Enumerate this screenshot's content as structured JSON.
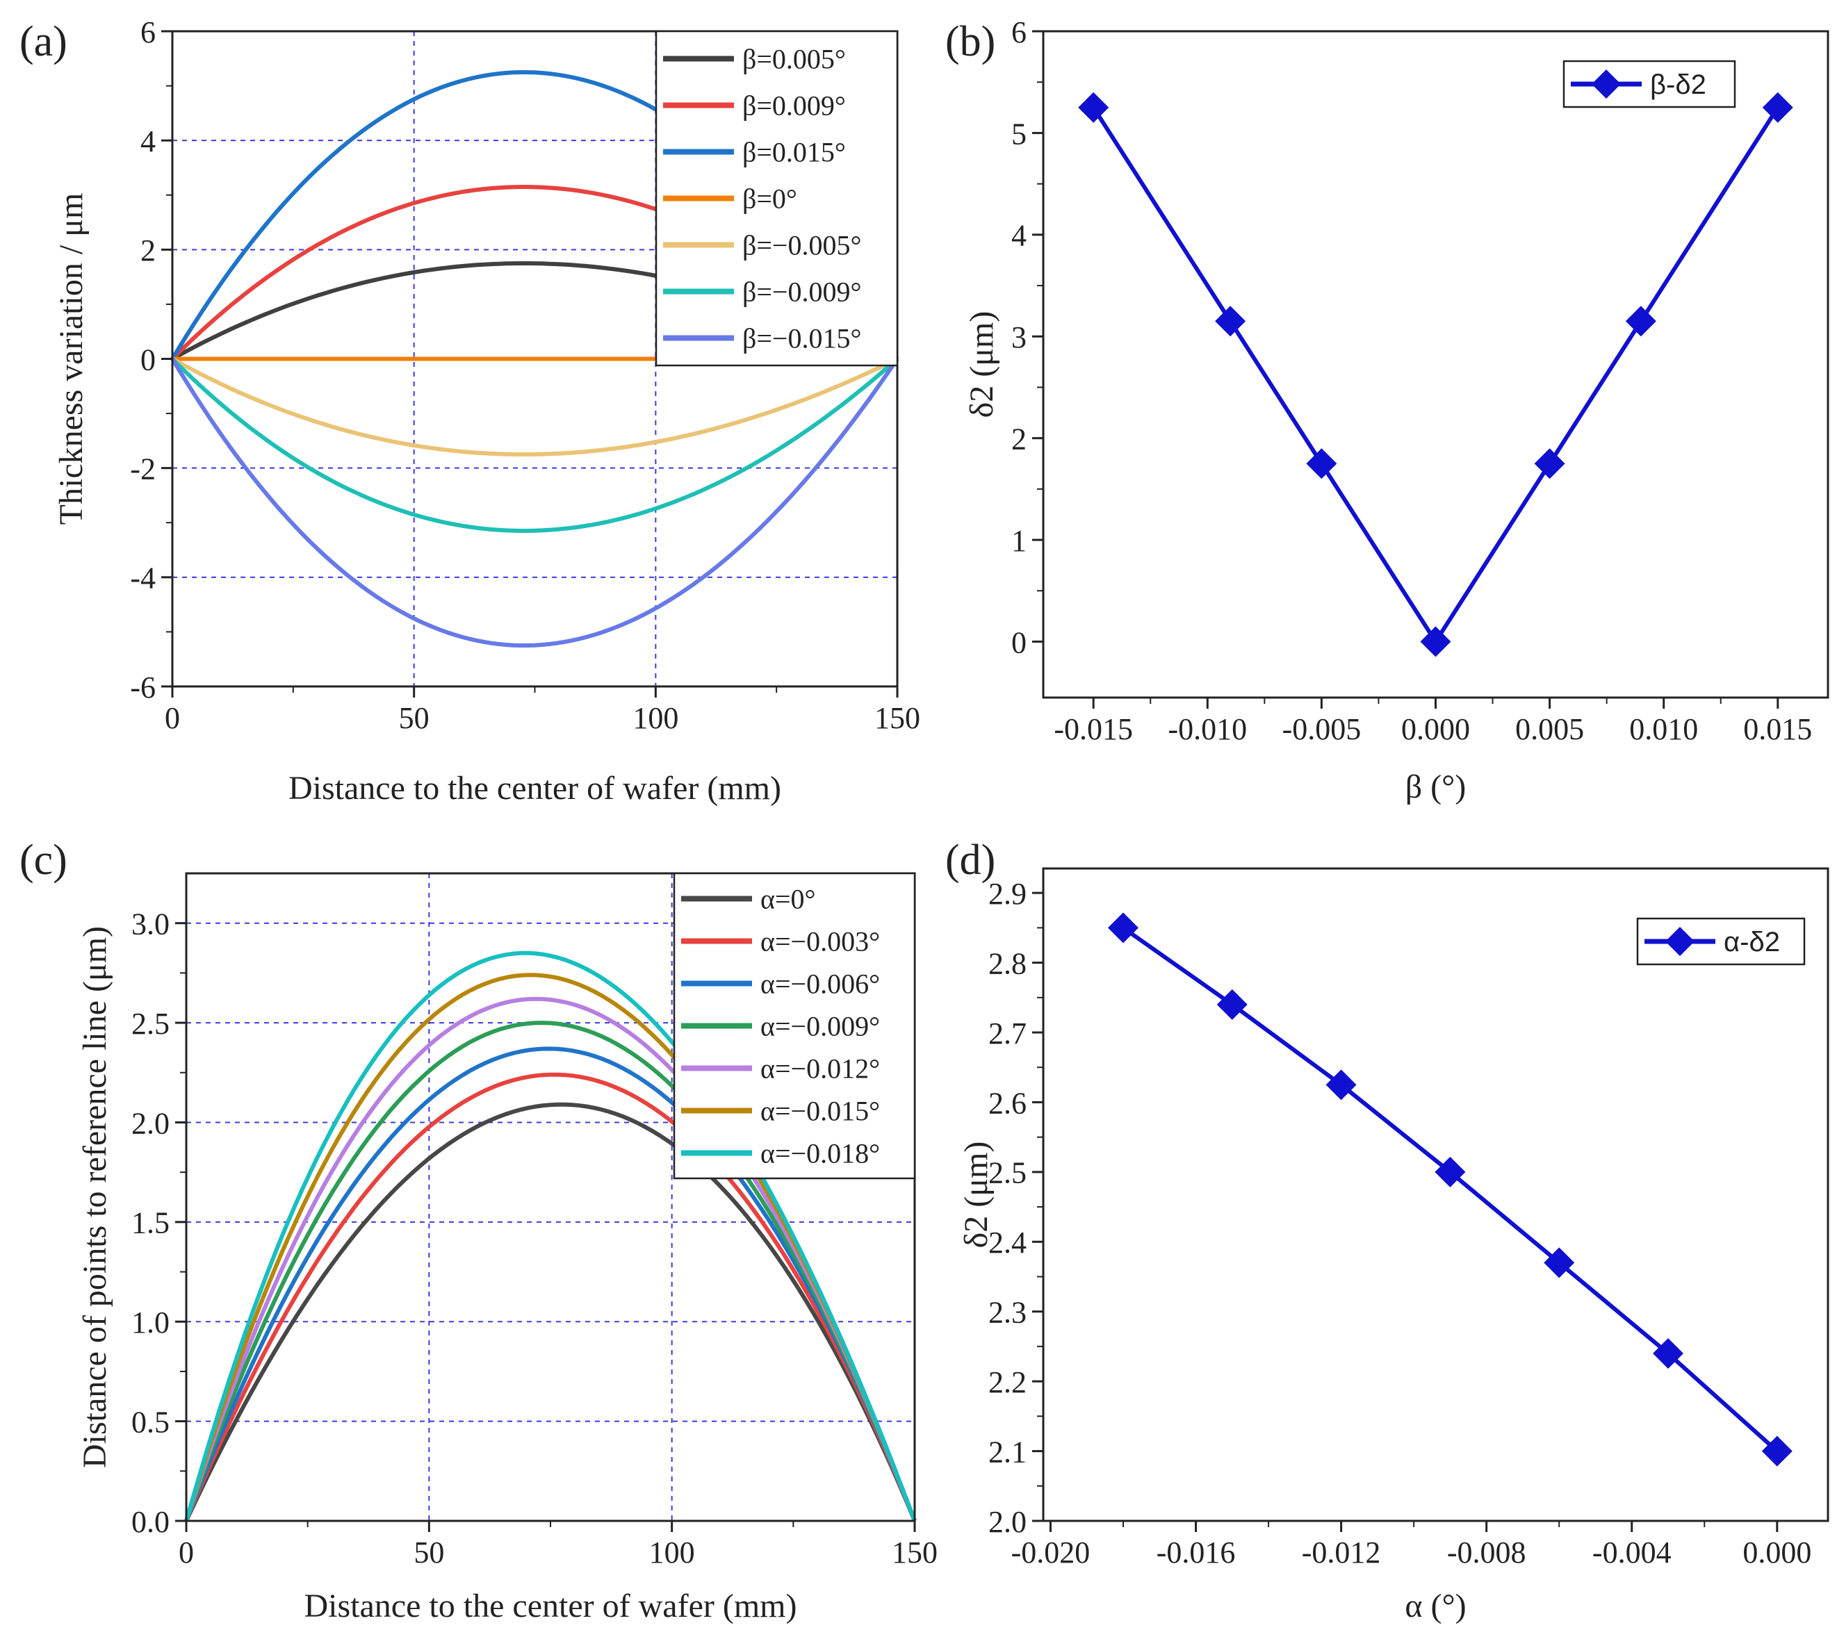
{
  "panels": {
    "a": "(a)",
    "b": "(b)",
    "c": "(c)",
    "d": "(d)"
  },
  "chart_data": [
    {
      "panel": "(a)",
      "type": "line",
      "xlabel": "Distance to the center of wafer (mm)",
      "ylabel": "Thickness variation / μm",
      "xlim": [
        0,
        150
      ],
      "ylim": [
        -6,
        6
      ],
      "xticks": [
        "0",
        "50",
        "100",
        "150"
      ],
      "yticks": [
        "-6",
        "-4",
        "-2",
        "0",
        "2",
        "4",
        "6"
      ],
      "grid": "dashed blue at x = 50, 100 and y = -4, -2, 2, 4",
      "legend_position": "top-right",
      "curve_shape": "y = 4·peak·(x/150)·(1 − x/150), with max near x ≈ 77",
      "x": [
        0,
        25,
        50,
        75,
        100,
        125,
        150
      ],
      "series": [
        {
          "name": "β=0.005°",
          "color": "#404040",
          "values": [
            0,
            1.06,
            1.55,
            1.75,
            1.56,
            1.03,
            0
          ]
        },
        {
          "name": "β=0.009°",
          "color": "#e8423f",
          "values": [
            0,
            1.91,
            2.8,
            3.15,
            2.81,
            1.85,
            0
          ]
        },
        {
          "name": "β=0.015°",
          "color": "#1f74c9",
          "values": [
            0,
            3.18,
            4.66,
            5.25,
            4.68,
            3.09,
            0
          ]
        },
        {
          "name": "β=0°",
          "color": "#f07f0b",
          "values": [
            0,
            0,
            0,
            0,
            0,
            0,
            0
          ]
        },
        {
          "name": "β=−0.005°",
          "color": "#eac375",
          "values": [
            0,
            -1.06,
            -1.55,
            -1.75,
            -1.56,
            -1.03,
            0
          ]
        },
        {
          "name": "β=−0.009°",
          "color": "#1fbfb5",
          "values": [
            0,
            -1.91,
            -2.8,
            -3.15,
            -2.81,
            -1.85,
            0
          ]
        },
        {
          "name": "β=−0.015°",
          "color": "#6879e8",
          "values": [
            0,
            -3.18,
            -4.66,
            -5.25,
            -4.68,
            -3.09,
            0
          ]
        }
      ]
    },
    {
      "panel": "(b)",
      "type": "line",
      "xlabel": "β (°)",
      "ylabel": "δ2 (μm)",
      "xlim": [
        -0.0172,
        0.0172
      ],
      "ylim": [
        -0.55,
        6
      ],
      "xticks": [
        "-0.015",
        "-0.010",
        "-0.005",
        "0.000",
        "0.005",
        "0.010",
        "0.015"
      ],
      "yticks": [
        "0",
        "1",
        "2",
        "3",
        "4",
        "5",
        "6"
      ],
      "legend_position": "top-right",
      "color": "#1010d0",
      "marker": "diamond",
      "series": [
        {
          "name": "β-δ2",
          "x": [
            -0.015,
            -0.009,
            -0.005,
            0,
            0.005,
            0.009,
            0.015
          ],
          "values": [
            5.25,
            3.15,
            1.75,
            0,
            1.75,
            3.15,
            5.25
          ]
        }
      ]
    },
    {
      "panel": "(c)",
      "type": "line",
      "xlabel": "Distance to the center of wafer (mm)",
      "ylabel": "Distance of points to reference line (μm)",
      "xlim": [
        0,
        150
      ],
      "ylim": [
        0,
        3.25
      ],
      "xticks": [
        "0",
        "50",
        "100",
        "150"
      ],
      "yticks": [
        "0.0",
        "0.5",
        "1.0",
        "1.5",
        "2.0",
        "2.5",
        "3.0"
      ],
      "grid": "dashed blue at x = 50, 100 and y = 0.5, 1.0, 1.5, 2.0, 2.5, 3.0",
      "legend_position": "top-right",
      "x": [
        0,
        25,
        50,
        75,
        100,
        125,
        150
      ],
      "series": [
        {
          "name": "α=0°",
          "color": "#474747",
          "peak_x": 78,
          "values": [
            0,
            1.28,
            1.87,
            2.09,
            1.87,
            1.23,
            0
          ]
        },
        {
          "name": "α=−0.003°",
          "color": "#e8423f",
          "peak_x": 76,
          "values": [
            0,
            1.4,
            2.02,
            2.24,
            1.98,
            1.27,
            0
          ]
        },
        {
          "name": "α=−0.006°",
          "color": "#1f74c9",
          "peak_x": 74.5,
          "values": [
            0,
            1.51,
            2.16,
            2.37,
            2.09,
            1.32,
            0
          ]
        },
        {
          "name": "α=−0.009°",
          "color": "#2c9d57",
          "peak_x": 72.5,
          "values": [
            0,
            1.62,
            2.31,
            2.5,
            2.18,
            1.35,
            0
          ]
        },
        {
          "name": "α=−0.012°",
          "color": "#b67fe1",
          "peak_x": 71,
          "values": [
            0,
            1.73,
            2.44,
            2.62,
            2.27,
            1.38,
            0
          ]
        },
        {
          "name": "α=−0.015°",
          "color": "#b8860b",
          "peak_x": 69.5,
          "values": [
            0,
            1.84,
            2.57,
            2.74,
            2.36,
            1.41,
            0
          ]
        },
        {
          "name": "α=−0.018°",
          "color": "#19bfc0",
          "peak_x": 68,
          "values": [
            0,
            1.95,
            2.7,
            2.85,
            2.44,
            1.44,
            0
          ]
        }
      ]
    },
    {
      "panel": "(d)",
      "type": "line",
      "xlabel": "α (°)",
      "ylabel": "δ2 (μm)",
      "xlim": [
        -0.0202,
        0.0014
      ],
      "ylim": [
        2.0,
        2.935
      ],
      "xticks": [
        "-0.020",
        "-0.016",
        "-0.012",
        "-0.008",
        "-0.004",
        "0.000"
      ],
      "yticks": [
        "2.0",
        "2.1",
        "2.2",
        "2.3",
        "2.4",
        "2.5",
        "2.6",
        "2.7",
        "2.8",
        "2.9"
      ],
      "legend_position": "top-right",
      "color": "#1010d0",
      "marker": "diamond",
      "series": [
        {
          "name": "α-δ2",
          "x": [
            -0.018,
            -0.015,
            -0.012,
            -0.009,
            -0.006,
            -0.003,
            0
          ],
          "values": [
            2.85,
            2.74,
            2.625,
            2.5,
            2.37,
            2.24,
            2.1
          ]
        }
      ]
    }
  ]
}
